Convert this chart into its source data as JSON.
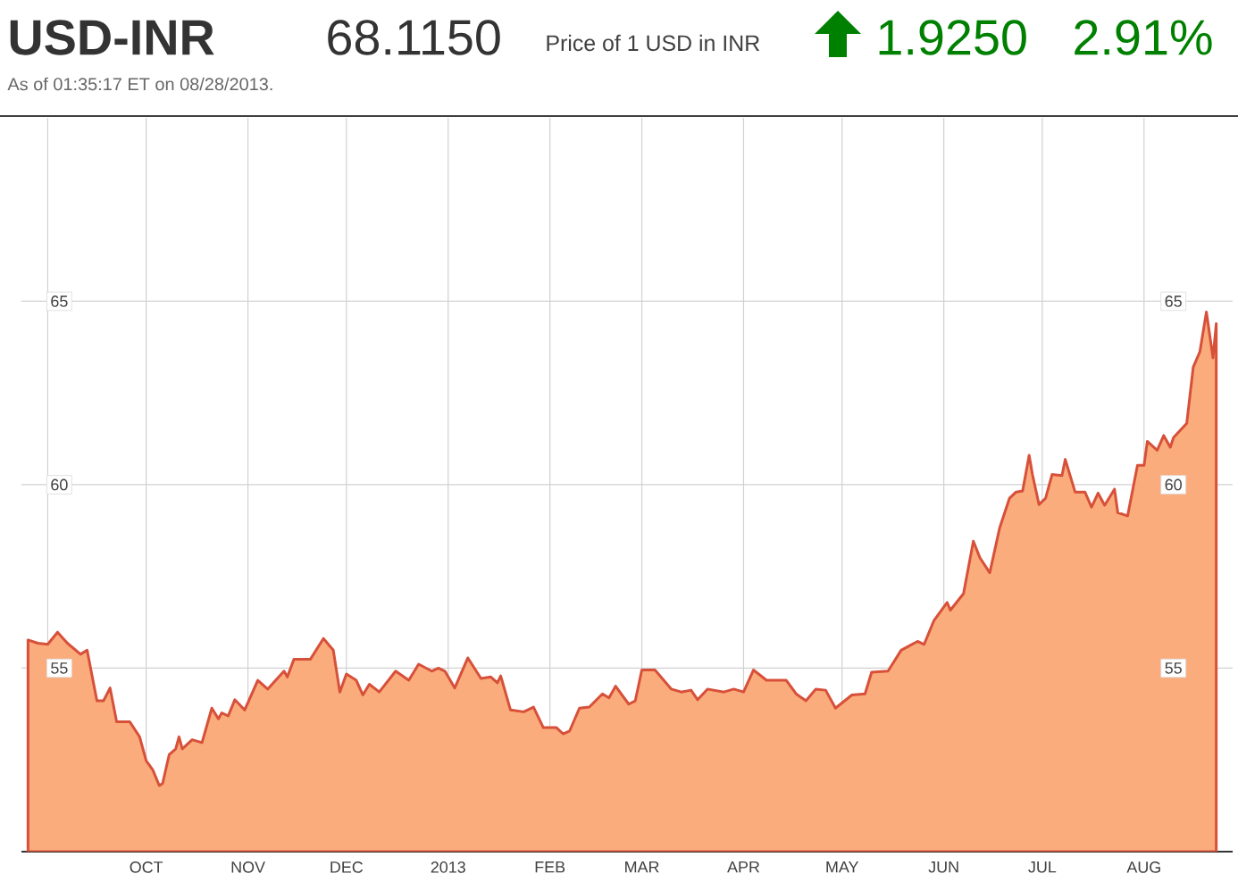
{
  "chart_data": {
    "type": "area",
    "title": "USD-INR",
    "subtitle": "As of 01:35:17 ET on 08/28/2013.",
    "annotations": [
      "68.1150",
      "Price of 1 USD in INR",
      "1.9250",
      "2.91%"
    ],
    "x": [
      "2012-08-26",
      "2012-08-29",
      "2012-09-01",
      "2012-09-04",
      "2012-09-07",
      "2012-09-11",
      "2012-09-13",
      "2012-09-16",
      "2012-09-18",
      "2012-09-20",
      "2012-09-22",
      "2012-09-26",
      "2012-09-29",
      "2012-10-01",
      "2012-10-03",
      "2012-10-05",
      "2012-10-06",
      "2012-10-08",
      "2012-10-10",
      "2012-10-11",
      "2012-10-12",
      "2012-10-15",
      "2012-10-18",
      "2012-10-21",
      "2012-10-23",
      "2012-10-24",
      "2012-10-26",
      "2012-10-28",
      "2012-10-31",
      "2012-11-04",
      "2012-11-07",
      "2012-11-12",
      "2012-11-13",
      "2012-11-15",
      "2012-11-20",
      "2012-11-24",
      "2012-11-27",
      "2012-11-29",
      "2012-12-01",
      "2012-12-04",
      "2012-12-06",
      "2012-12-08",
      "2012-12-11",
      "2012-12-16",
      "2012-12-20",
      "2012-12-23",
      "2012-12-27",
      "2012-12-29",
      "2012-12-31",
      "2013-01-03",
      "2013-01-07",
      "2013-01-11",
      "2013-01-14",
      "2013-01-16",
      "2013-01-17",
      "2013-01-20",
      "2013-01-24",
      "2013-01-27",
      "2013-01-30",
      "2013-02-03",
      "2013-02-05",
      "2013-02-07",
      "2013-02-10",
      "2013-02-13",
      "2013-02-17",
      "2013-02-19",
      "2013-02-21",
      "2013-02-25",
      "2013-02-27",
      "2013-03-01",
      "2013-03-05",
      "2013-03-10",
      "2013-03-13",
      "2013-03-16",
      "2013-03-18",
      "2013-03-21",
      "2013-03-26",
      "2013-03-29",
      "2013-04-01",
      "2013-04-04",
      "2013-04-08",
      "2013-04-14",
      "2013-04-17",
      "2013-04-20",
      "2013-04-23",
      "2013-04-26",
      "2013-04-29",
      "2013-05-04",
      "2013-05-08",
      "2013-05-10",
      "2013-05-15",
      "2013-05-19",
      "2013-05-24",
      "2013-05-26",
      "2013-05-29",
      "2013-06-02",
      "2013-06-03",
      "2013-06-07",
      "2013-06-10",
      "2013-06-12",
      "2013-06-15",
      "2013-06-18",
      "2013-06-21",
      "2013-06-23",
      "2013-06-25",
      "2013-06-27",
      "2013-06-28",
      "2013-06-30",
      "2013-07-02",
      "2013-07-04",
      "2013-07-07",
      "2013-07-08",
      "2013-07-11",
      "2013-07-14",
      "2013-07-16",
      "2013-07-18",
      "2013-07-20",
      "2013-07-23",
      "2013-07-24",
      "2013-07-27",
      "2013-07-30",
      "2013-08-01",
      "2013-08-02",
      "2013-08-05",
      "2013-08-07",
      "2013-08-09",
      "2013-08-10",
      "2013-08-14",
      "2013-08-16",
      "2013-08-18",
      "2013-08-20",
      "2013-08-22",
      "2013-08-23"
    ],
    "series": [
      {
        "color": "#fbac7c",
        "values": [
          55.77,
          55.68,
          55.65,
          55.98,
          55.68,
          55.38,
          55.49,
          54.11,
          54.11,
          54.46,
          53.54,
          53.54,
          53.13,
          52.48,
          52.23,
          51.8,
          51.86,
          52.64,
          52.8,
          53.13,
          52.8,
          53.05,
          52.97,
          53.91,
          53.62,
          53.78,
          53.7,
          54.14,
          53.86,
          54.67,
          54.43,
          54.92,
          54.76,
          55.24,
          55.24,
          55.81,
          55.49,
          54.35,
          54.84,
          54.67,
          54.27,
          54.56,
          54.35,
          54.92,
          54.67,
          55.11,
          54.92,
          55.0,
          54.92,
          54.46,
          55.28,
          54.72,
          54.76,
          54.6,
          54.79,
          53.86,
          53.81,
          53.94,
          53.38,
          53.38,
          53.21,
          53.29,
          53.91,
          53.94,
          54.3,
          54.19,
          54.51,
          54.02,
          54.11,
          54.95,
          54.95,
          54.43,
          54.35,
          54.4,
          54.14,
          54.43,
          54.35,
          54.43,
          54.35,
          54.95,
          54.67,
          54.67,
          54.3,
          54.11,
          54.43,
          54.4,
          53.91,
          54.27,
          54.3,
          54.89,
          54.92,
          55.49,
          55.73,
          55.65,
          56.3,
          56.79,
          56.58,
          57.03,
          58.46,
          58.01,
          57.6,
          58.82,
          59.63,
          59.8,
          59.83,
          60.8,
          60.28,
          59.46,
          59.63,
          60.28,
          60.25,
          60.69,
          59.8,
          59.8,
          59.39,
          59.77,
          59.44,
          59.88,
          59.24,
          59.15,
          60.53,
          60.53,
          61.18,
          60.94,
          61.34,
          61.02,
          61.29,
          61.67,
          63.21,
          63.62,
          64.71,
          63.46,
          64.39
        ]
      }
    ],
    "xlim": [
      "2012-08-24",
      "2013-08-28"
    ],
    "ylim": [
      50,
      70
    ],
    "y2lim": [
      50,
      70
    ],
    "xticks": [
      {
        "value": "2012-09-01",
        "label": null
      },
      {
        "value": "2012-10-01",
        "label": "OCT"
      },
      {
        "value": "2012-11-01",
        "label": "NOV"
      },
      {
        "value": "2012-12-01",
        "label": "DEC"
      },
      {
        "value": "2013-01-01",
        "label": "2013"
      },
      {
        "value": "2013-02-01",
        "label": "FEB"
      },
      {
        "value": "2013-03-01",
        "label": "MAR"
      },
      {
        "value": "2013-04-01",
        "label": "APR"
      },
      {
        "value": "2013-05-01",
        "label": "MAY"
      },
      {
        "value": "2013-06-01",
        "label": "JUN"
      },
      {
        "value": "2013-07-01",
        "label": "JUL"
      },
      {
        "value": "2013-08-01",
        "label": "AUG"
      }
    ],
    "yticks": [
      55,
      60,
      65
    ],
    "y2ticks": [
      55,
      60,
      65
    ],
    "grid": true
  }
}
